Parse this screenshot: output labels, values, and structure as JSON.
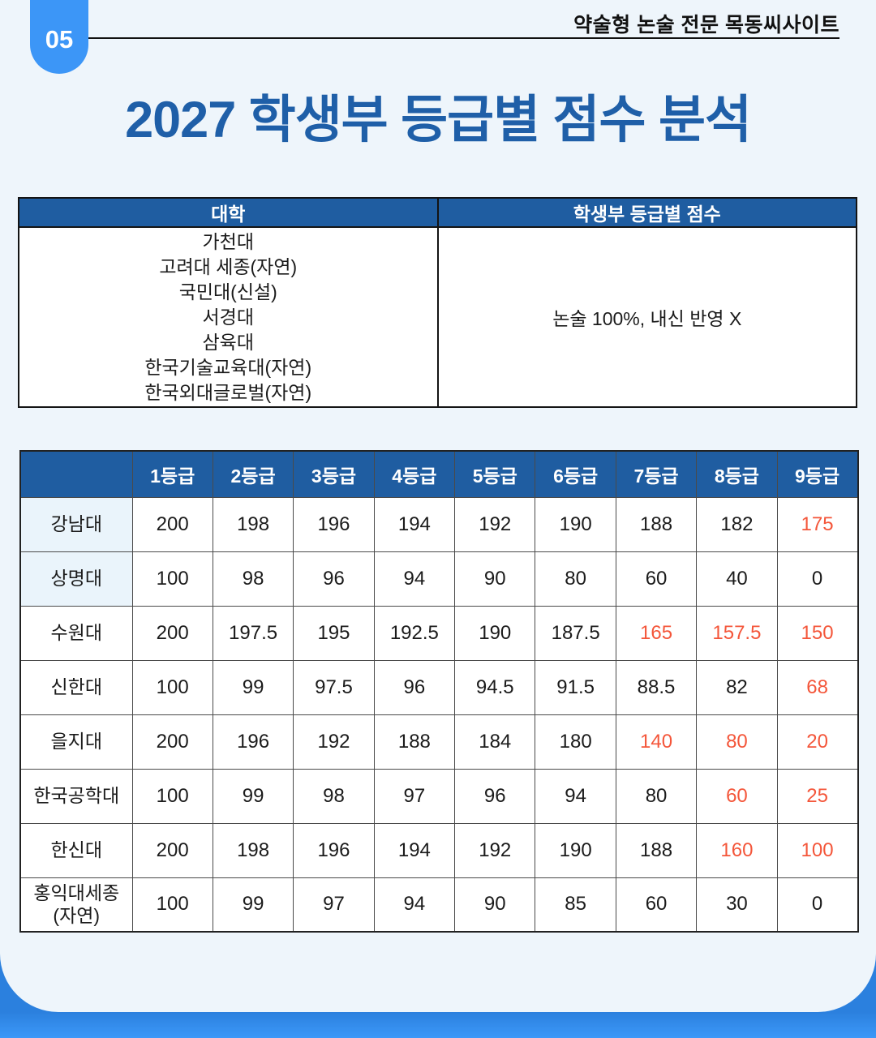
{
  "header": {
    "badge": "05",
    "brand": "약술형 논술 전문 목동씨사이트",
    "title": "2027 학생부 등급별 점수 분석"
  },
  "info_table": {
    "col_university": "대학",
    "col_score": "학생부 등급별 점수",
    "universities": [
      "가천대",
      "고려대 세종(자연)",
      "국민대(신설)",
      "서경대",
      "삼육대",
      "한국기술교육대(자연)",
      "한국외대글로벌(자연)"
    ],
    "score_note": "논술 100%, 내신 반영 X"
  },
  "score_table": {
    "grade_headers": [
      "1등급",
      "2등급",
      "3등급",
      "4등급",
      "5등급",
      "6등급",
      "7등급",
      "8등급",
      "9등급"
    ],
    "rows": [
      {
        "name": "강남대",
        "values": [
          "200",
          "198",
          "196",
          "194",
          "192",
          "190",
          "188",
          "182",
          "175"
        ],
        "orange": [
          8
        ]
      },
      {
        "name": "상명대",
        "values": [
          "100",
          "98",
          "96",
          "94",
          "90",
          "80",
          "60",
          "40",
          "0"
        ],
        "orange": []
      },
      {
        "name": "수원대",
        "values": [
          "200",
          "197.5",
          "195",
          "192.5",
          "190",
          "187.5",
          "165",
          "157.5",
          "150"
        ],
        "orange": [
          6,
          7,
          8
        ]
      },
      {
        "name": "신한대",
        "values": [
          "100",
          "99",
          "97.5",
          "96",
          "94.5",
          "91.5",
          "88.5",
          "82",
          "68"
        ],
        "orange": [
          8
        ]
      },
      {
        "name": "을지대",
        "values": [
          "200",
          "196",
          "192",
          "188",
          "184",
          "180",
          "140",
          "80",
          "20"
        ],
        "orange": [
          6,
          7,
          8
        ]
      },
      {
        "name": "한국공학대",
        "values": [
          "100",
          "99",
          "98",
          "97",
          "96",
          "94",
          "80",
          "60",
          "25"
        ],
        "orange": [
          7,
          8
        ]
      },
      {
        "name": "한신대",
        "values": [
          "200",
          "198",
          "196",
          "194",
          "192",
          "190",
          "188",
          "160",
          "100"
        ],
        "orange": [
          7,
          8
        ]
      },
      {
        "name": "홍익대세종 (자연)",
        "values": [
          "100",
          "99",
          "97",
          "94",
          "90",
          "85",
          "60",
          "30",
          "0"
        ],
        "orange": []
      }
    ]
  },
  "colors": {
    "table_header_blue": "#1f5da1",
    "title_blue": "#1f5fa8",
    "badge_blue": "#3c96f7",
    "highlight_orange": "#f4563a",
    "panel_bg": "#eef5fb",
    "bottom_blue": "#3c98f8",
    "first_col_tint": "#eaf4fb"
  }
}
